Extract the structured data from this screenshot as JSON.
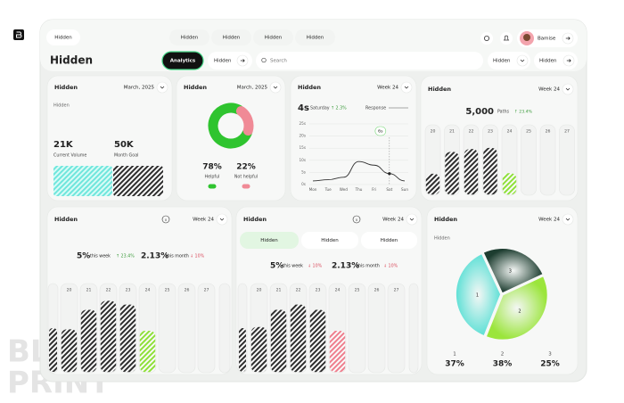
{
  "watermark": [
    "BLUE",
    "PRINT"
  ],
  "nav": {
    "menu": "Hidden",
    "tabs": [
      "Hidden",
      "Hidden",
      "Hidden",
      "Hidden"
    ],
    "user": "Bamise"
  },
  "header": {
    "title": "Hidden",
    "active_tab": "Analytics",
    "dropdown": "Hidden",
    "search": "Search",
    "filters": [
      "Hidden",
      "Hidden"
    ]
  },
  "volume_card": {
    "title": "Hidden",
    "period": "March, 2025",
    "subtitle": "Hidden",
    "current": "21K",
    "current_label": "Current Volume",
    "goal": "50K",
    "goal_label": "Month Goal"
  },
  "feedback_card": {
    "title": "Hidden",
    "period": "March, 2025",
    "segments": [
      {
        "value": 78,
        "label": "78%",
        "name": "Helpful",
        "color": "#2fc42f"
      },
      {
        "value": 22,
        "label": "22%",
        "name": "Not helpful",
        "color": "#f08a96"
      }
    ]
  },
  "response_card": {
    "title": "Hidden",
    "period": "Week 24",
    "value": "4s",
    "day": "Saturday",
    "change": "↑ 2.3%",
    "legend": "Response",
    "marker": "6s",
    "yticks": [
      {
        "value": 25,
        "label": "25s"
      },
      {
        "value": 20,
        "label": "20s"
      },
      {
        "value": 15,
        "label": "15s"
      },
      {
        "value": 10,
        "label": "10s"
      },
      {
        "value": 5,
        "label": "5s"
      },
      {
        "value": 0,
        "label": "0s"
      }
    ],
    "ylim": [
      0,
      25
    ],
    "days": [
      "Mon",
      "Tue",
      "Wed",
      "Thu",
      "Fri",
      "Sat",
      "Sun"
    ],
    "values": [
      1.5,
      2,
      3,
      9.5,
      8,
      4.5,
      1.5
    ]
  },
  "paths_card": {
    "title": "Hidden",
    "period": "Week 24",
    "value": "5,000",
    "unit": "Paths",
    "change": "↑ 23.4%",
    "bars": [
      {
        "day": "20",
        "value": 37,
        "color": "#2e2e2e"
      },
      {
        "day": "21",
        "value": 76,
        "color": "#2e2e2e"
      },
      {
        "day": "22",
        "value": 81,
        "color": "#2e2e2e"
      },
      {
        "day": "23",
        "value": 83,
        "color": "#2e2e2e"
      },
      {
        "day": "24",
        "value": 38,
        "color": "#8fe03a"
      },
      {
        "day": "25",
        "value": 0,
        "color": "#2e2e2e"
      },
      {
        "day": "26",
        "value": 0,
        "color": "#2e2e2e"
      },
      {
        "day": "27",
        "value": 0,
        "color": "#2e2e2e"
      }
    ]
  },
  "weekly_card": {
    "title": "Hidden",
    "period": "Week 24",
    "week_value": "5%",
    "week_label": "this week",
    "week_change": "↑ 23.4%",
    "month_value": "2.13%",
    "month_label": "this month",
    "month_change": "↓ 10%",
    "bars": [
      {
        "day": "20",
        "value": 57,
        "color": "#2e2e2e"
      },
      {
        "day": "21",
        "value": 83,
        "color": "#2e2e2e"
      },
      {
        "day": "22",
        "value": 95,
        "color": "#2e2e2e"
      },
      {
        "day": "23",
        "value": 90,
        "color": "#2e2e2e"
      },
      {
        "day": "24",
        "value": 55,
        "color": "#8fe03a"
      },
      {
        "day": "25",
        "value": 0,
        "color": "#2e2e2e"
      },
      {
        "day": "26",
        "value": 0,
        "color": "#2e2e2e"
      },
      {
        "day": "27",
        "value": 0,
        "color": "#2e2e2e"
      }
    ]
  },
  "compare_card": {
    "title": "Hidden",
    "period": "Week 24",
    "tabs": [
      "Hidden",
      "Hidden",
      "Hidden"
    ],
    "week_value": "5%",
    "week_label": "this week",
    "week_change": "↓ 10%",
    "month_value": "2.13%",
    "month_label": "this month",
    "month_change": "↓ 10%",
    "bars": [
      {
        "day": "20",
        "value": 60,
        "color": "#2e2e2e"
      },
      {
        "day": "21",
        "value": 83,
        "color": "#2e2e2e"
      },
      {
        "day": "22",
        "value": 90,
        "color": "#2e2e2e"
      },
      {
        "day": "23",
        "value": 83,
        "color": "#2e2e2e"
      },
      {
        "day": "24",
        "value": 55,
        "color": "#ef7f8e"
      },
      {
        "day": "25",
        "value": 0,
        "color": "#2e2e2e"
      },
      {
        "day": "26",
        "value": 0,
        "color": "#2e2e2e"
      },
      {
        "day": "27",
        "value": 0,
        "color": "#2e2e2e"
      }
    ]
  },
  "share_card": {
    "title": "Hidden",
    "period": "Week 24",
    "subtitle": "Hidden",
    "segments": [
      {
        "name": "1",
        "value": 37,
        "label": "37%",
        "color": "#5fe0d6"
      },
      {
        "name": "2",
        "value": 38,
        "label": "38%",
        "color": "#9be53c"
      },
      {
        "name": "3",
        "value": 25,
        "label": "25%",
        "color": "#1d3d30"
      }
    ]
  }
}
